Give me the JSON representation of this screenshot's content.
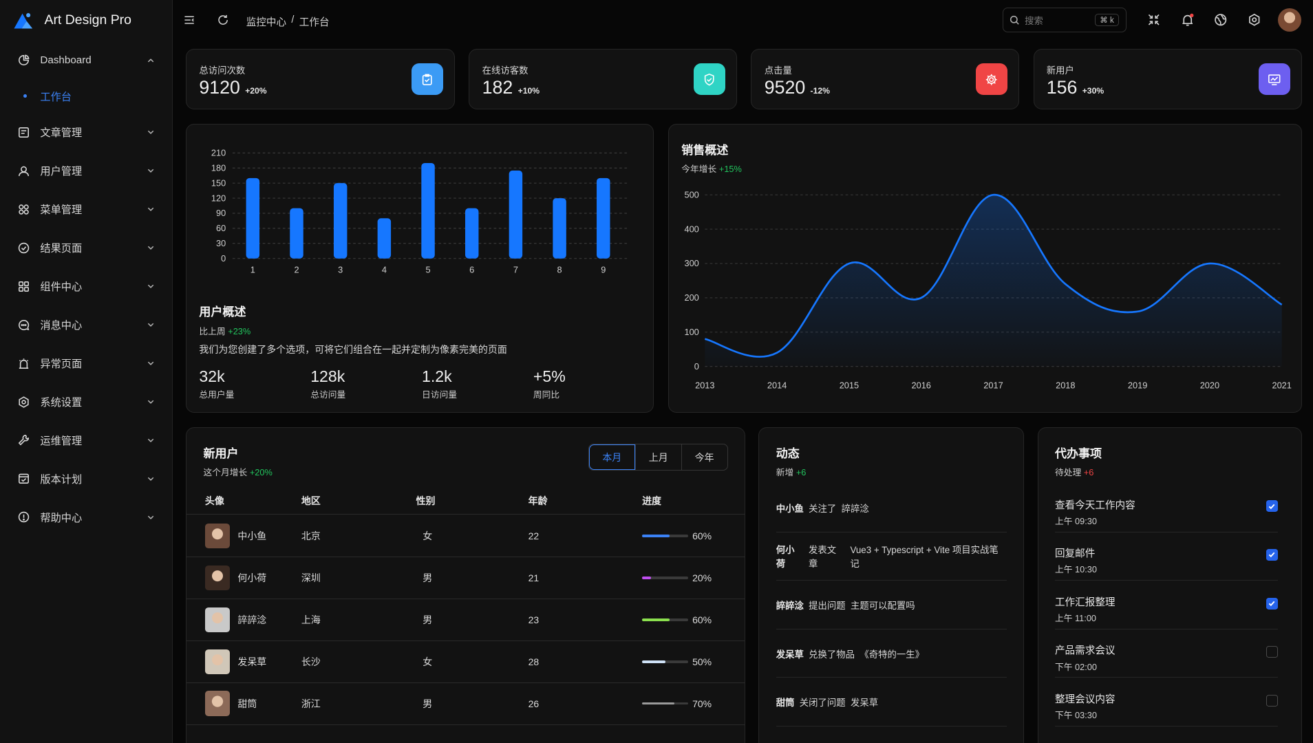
{
  "app": {
    "name": "Art Design Pro"
  },
  "sidebar": {
    "items": [
      {
        "label": "Dashboard",
        "icon": "dashboard-icon"
      },
      {
        "label": "文章管理",
        "icon": "article-icon"
      },
      {
        "label": "用户管理",
        "icon": "user-icon"
      },
      {
        "label": "菜单管理",
        "icon": "menu-grid-icon"
      },
      {
        "label": "结果页面",
        "icon": "check-circle-icon"
      },
      {
        "label": "组件中心",
        "icon": "components-icon"
      },
      {
        "label": "消息中心",
        "icon": "message-icon"
      },
      {
        "label": "异常页面",
        "icon": "alarm-icon"
      },
      {
        "label": "系统设置",
        "icon": "settings-icon"
      },
      {
        "label": "运维管理",
        "icon": "wrench-icon"
      },
      {
        "label": "版本计划",
        "icon": "calendar-check-icon"
      },
      {
        "label": "帮助中心",
        "icon": "help-icon"
      }
    ],
    "subitem": {
      "label": "工作台"
    }
  },
  "topbar": {
    "breadcrumb": [
      "监控中心",
      "/",
      "工作台"
    ],
    "search_placeholder": "搜索",
    "search_shortcut": "⌘ k"
  },
  "stats": [
    {
      "title": "总访问次数",
      "value": "9120",
      "change": "+20%",
      "color": "#3b9bf5",
      "icon": "clipboard-icon"
    },
    {
      "title": "在线访客数",
      "value": "182",
      "change": "+10%",
      "color": "#2fd4c5",
      "icon": "shield-check-icon"
    },
    {
      "title": "点击量",
      "value": "9520",
      "change": "-12%",
      "color": "#f04545",
      "icon": "gear-icon"
    },
    {
      "title": "新用户",
      "value": "156",
      "change": "+30%",
      "color": "#6d5ff0",
      "icon": "monitor-chart-icon"
    }
  ],
  "user_overview": {
    "title": "用户概述",
    "compare_label": "比上周",
    "compare_value": "+23%",
    "description": "我们为您创建了多个选项，可将它们组合在一起并定制为像素完美的页面",
    "metrics": [
      {
        "value": "32k",
        "label": "总用户量"
      },
      {
        "value": "128k",
        "label": "总访问量"
      },
      {
        "value": "1.2k",
        "label": "日访问量"
      },
      {
        "value": "+5%",
        "label": "周同比"
      }
    ]
  },
  "sales": {
    "title": "销售概述",
    "growth_label": "今年增长",
    "growth_value": "+15%"
  },
  "chart_data": [
    {
      "type": "bar",
      "categories": [
        "1",
        "2",
        "3",
        "4",
        "5",
        "6",
        "7",
        "8",
        "9"
      ],
      "values": [
        160,
        100,
        150,
        80,
        190,
        100,
        175,
        120,
        160
      ],
      "ylim": [
        0,
        210
      ],
      "yticks": [
        0,
        30,
        60,
        90,
        120,
        150,
        180,
        210
      ],
      "grid": true,
      "color": "#1677ff"
    },
    {
      "type": "area",
      "x": [
        "2013",
        "2014",
        "2015",
        "2016",
        "2017",
        "2018",
        "2019",
        "2020",
        "2021"
      ],
      "values": [
        80,
        40,
        300,
        200,
        500,
        240,
        160,
        300,
        180
      ],
      "ylim": [
        0,
        500
      ],
      "yticks": [
        0,
        100,
        200,
        300,
        400,
        500
      ],
      "grid": true,
      "color": "#1677ff"
    }
  ],
  "new_users": {
    "title": "新用户",
    "growth_label": "这个月增长",
    "growth_value": "+20%",
    "tabs": [
      "本月",
      "上月",
      "今年"
    ],
    "columns": [
      "头像",
      "地区",
      "性别",
      "年龄",
      "进度"
    ],
    "rows": [
      {
        "name": "中小鱼",
        "region": "北京",
        "gender": "女",
        "age": "22",
        "progress": 0.6,
        "progress_label": "60%",
        "color": "#3b82f6"
      },
      {
        "name": "何小荷",
        "region": "深圳",
        "gender": "男",
        "age": "21",
        "progress": 0.2,
        "progress_label": "20%",
        "color": "#c04ef0"
      },
      {
        "name": "誶誶淰",
        "region": "上海",
        "gender": "男",
        "age": "23",
        "progress": 0.6,
        "progress_label": "60%",
        "color": "#8be04e"
      },
      {
        "name": "发呆草",
        "region": "长沙",
        "gender": "女",
        "age": "28",
        "progress": 0.5,
        "progress_label": "50%",
        "color": "#cfe2f7"
      },
      {
        "name": "甜筒",
        "region": "浙江",
        "gender": "男",
        "age": "26",
        "progress": 0.7,
        "progress_label": "70%",
        "color": "#9a9a9a"
      }
    ]
  },
  "activity": {
    "title": "动态",
    "new_label": "新增",
    "new_value": "+6",
    "items": [
      {
        "who": "中小鱼",
        "action": "关注了",
        "target": "誶誶淰"
      },
      {
        "who": "何小荷",
        "action": "发表文章",
        "target": "Vue3 + Typescript + Vite 项目实战笔记"
      },
      {
        "who": "誶誶淰",
        "action": "提出问题",
        "target": "主题可以配置吗"
      },
      {
        "who": "发呆草",
        "action": "兑换了物品",
        "target": "《奇特的一生》"
      },
      {
        "who": "甜筒",
        "action": "关闭了问题",
        "target": "发呆草"
      }
    ]
  },
  "todo": {
    "title": "代办事项",
    "pending_label": "待处理",
    "pending_value": "+6",
    "items": [
      {
        "title": "查看今天工作内容",
        "time": "上午 09:30",
        "done": true
      },
      {
        "title": "回复邮件",
        "time": "上午 10:30",
        "done": true
      },
      {
        "title": "工作汇报整理",
        "time": "上午 11:00",
        "done": true
      },
      {
        "title": "产品需求会议",
        "time": "下午 02:00",
        "done": false
      },
      {
        "title": "整理会议内容",
        "time": "下午 03:30",
        "done": false
      }
    ]
  }
}
